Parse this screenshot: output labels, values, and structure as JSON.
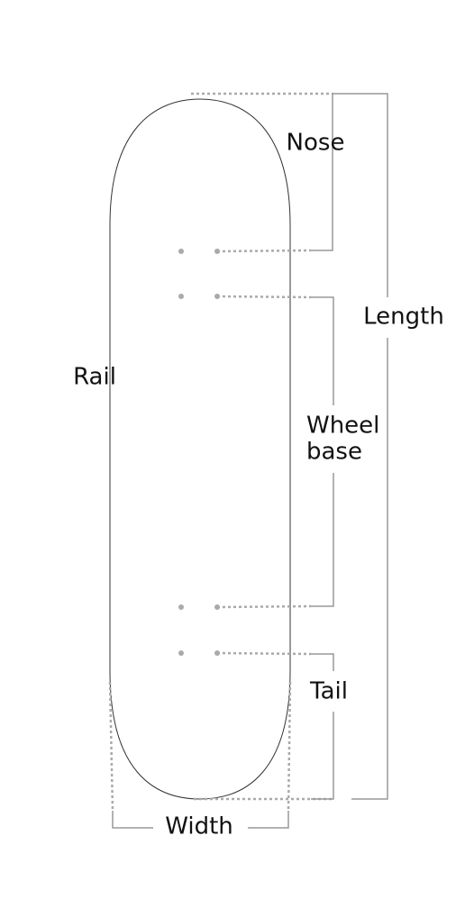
{
  "labels": {
    "nose": "Nose",
    "length": "Length",
    "rail": "Rail",
    "wheelbase": [
      "Wheel",
      "base"
    ],
    "tail": "Tail",
    "width": "Width"
  }
}
